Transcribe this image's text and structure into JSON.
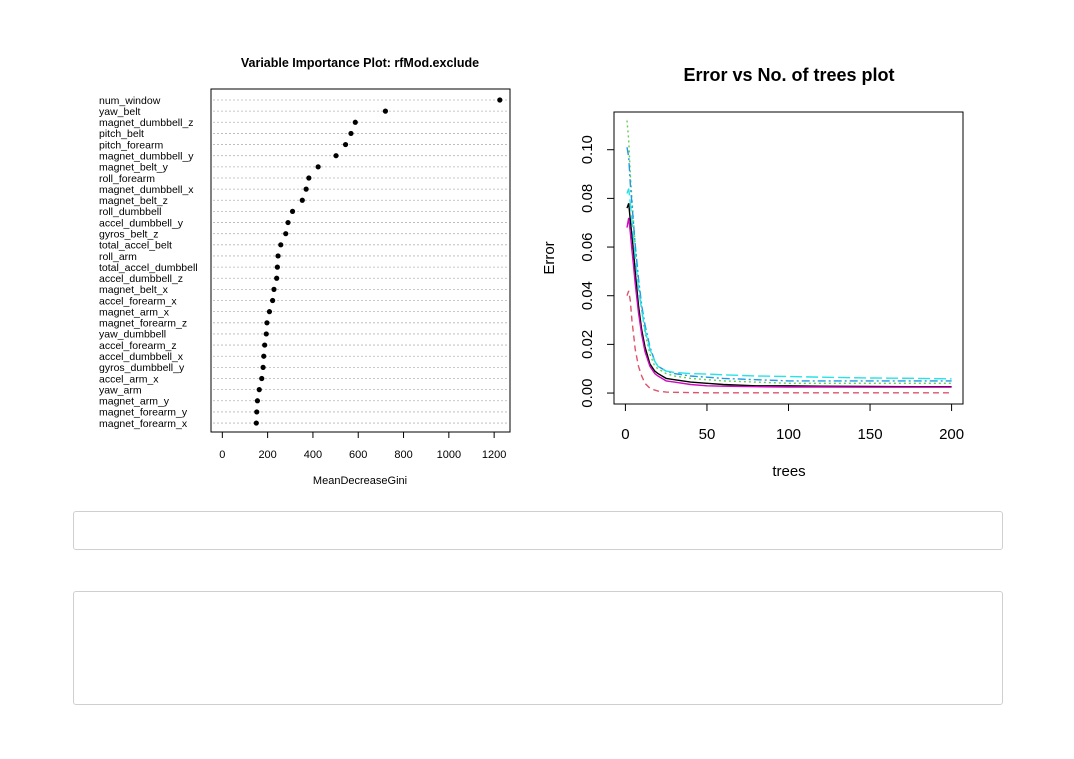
{
  "chart_data": [
    {
      "type": "scatter",
      "title": "Variable Importance Plot: rfMod.exclude",
      "xlabel": "MeanDecreaseGini",
      "ylabel": "",
      "xlim": [
        -50,
        1270
      ],
      "xticks": [
        0,
        200,
        400,
        600,
        800,
        1000,
        1200
      ],
      "grid": "dotted horizontal lines per variable",
      "points": [
        {
          "variable": "num_window",
          "value": 1225
        },
        {
          "variable": "yaw_belt",
          "value": 720
        },
        {
          "variable": "magnet_dumbbell_z",
          "value": 587
        },
        {
          "variable": "pitch_belt",
          "value": 568
        },
        {
          "variable": "pitch_forearm",
          "value": 544
        },
        {
          "variable": "magnet_dumbbell_y",
          "value": 502
        },
        {
          "variable": "magnet_belt_y",
          "value": 423
        },
        {
          "variable": "roll_forearm",
          "value": 382
        },
        {
          "variable": "magnet_dumbbell_x",
          "value": 370
        },
        {
          "variable": "magnet_belt_z",
          "value": 353
        },
        {
          "variable": "roll_dumbbell",
          "value": 310
        },
        {
          "variable": "accel_dumbbell_y",
          "value": 290
        },
        {
          "variable": "gyros_belt_z",
          "value": 280
        },
        {
          "variable": "total_accel_belt",
          "value": 258
        },
        {
          "variable": "roll_arm",
          "value": 246
        },
        {
          "variable": "total_accel_dumbbell",
          "value": 243
        },
        {
          "variable": "accel_dumbbell_z",
          "value": 240
        },
        {
          "variable": "magnet_belt_x",
          "value": 228
        },
        {
          "variable": "accel_forearm_x",
          "value": 222
        },
        {
          "variable": "magnet_arm_x",
          "value": 208
        },
        {
          "variable": "magnet_forearm_z",
          "value": 197
        },
        {
          "variable": "yaw_dumbbell",
          "value": 194
        },
        {
          "variable": "accel_forearm_z",
          "value": 187
        },
        {
          "variable": "accel_dumbbell_x",
          "value": 183
        },
        {
          "variable": "gyros_dumbbell_y",
          "value": 180
        },
        {
          "variable": "accel_arm_x",
          "value": 174
        },
        {
          "variable": "yaw_arm",
          "value": 163
        },
        {
          "variable": "magnet_arm_y",
          "value": 155
        },
        {
          "variable": "magnet_forearm_y",
          "value": 152
        },
        {
          "variable": "magnet_forearm_x",
          "value": 150
        }
      ]
    },
    {
      "type": "line",
      "title": "Error vs No. of trees plot",
      "xlabel": "trees",
      "ylabel": "Error",
      "xlim": [
        -7,
        207
      ],
      "ylim": [
        -0.0045,
        0.1155
      ],
      "xticks": [
        0,
        50,
        100,
        150,
        200
      ],
      "yticks": [
        "0.00",
        "0.02",
        "0.04",
        "0.06",
        "0.08",
        "0.10"
      ],
      "x": [
        1,
        2,
        3,
        4,
        5,
        6,
        8,
        10,
        12,
        15,
        18,
        20,
        25,
        30,
        40,
        50,
        60,
        80,
        100,
        120,
        150,
        180,
        200
      ],
      "series": [
        {
          "color": "#000000",
          "dash": "solid",
          "values": [
            0.076,
            0.078,
            0.071,
            0.065,
            0.058,
            0.05,
            0.036,
            0.026,
            0.019,
            0.012,
            0.009,
            0.008,
            0.006,
            0.0055,
            0.0045,
            0.004,
            0.0035,
            0.003,
            0.003,
            0.0028,
            0.0027,
            0.0026,
            0.0026
          ]
        },
        {
          "color": "#DF536B",
          "dash": "6,4",
          "values": [
            0.04,
            0.042,
            0.038,
            0.03,
            0.024,
            0.018,
            0.011,
            0.007,
            0.004,
            0.002,
            0.0012,
            0.0008,
            0.0004,
            0.0003,
            0.0002,
            0.0001,
            0.0001,
            0.0001,
            0.0001,
            0.0001,
            0.0001,
            0.0001,
            0.0001
          ]
        },
        {
          "color": "#61D04F",
          "dash": "2,3",
          "values": [
            0.112,
            0.104,
            0.09,
            0.08,
            0.07,
            0.061,
            0.045,
            0.034,
            0.025,
            0.016,
            0.011,
            0.01,
            0.008,
            0.007,
            0.006,
            0.0055,
            0.005,
            0.0045,
            0.004,
            0.004,
            0.004,
            0.004,
            0.004
          ]
        },
        {
          "color": "#2297E6",
          "dash": "8,3,2,3",
          "values": [
            0.101,
            0.097,
            0.086,
            0.078,
            0.069,
            0.061,
            0.047,
            0.036,
            0.028,
            0.019,
            0.013,
            0.011,
            0.009,
            0.008,
            0.007,
            0.0065,
            0.006,
            0.0055,
            0.005,
            0.005,
            0.005,
            0.005,
            0.005
          ]
        },
        {
          "color": "#28E2E5",
          "dash": "12,4",
          "values": [
            0.082,
            0.084,
            0.078,
            0.071,
            0.063,
            0.056,
            0.043,
            0.034,
            0.026,
            0.018,
            0.013,
            0.011,
            0.009,
            0.0085,
            0.008,
            0.0078,
            0.0075,
            0.007,
            0.0068,
            0.0065,
            0.0062,
            0.006,
            0.0058
          ]
        },
        {
          "color": "#CD0BBC",
          "dash": "solid",
          "values": [
            0.068,
            0.072,
            0.066,
            0.059,
            0.052,
            0.045,
            0.033,
            0.024,
            0.017,
            0.011,
            0.008,
            0.007,
            0.005,
            0.0045,
            0.0035,
            0.003,
            0.0028,
            0.0026,
            0.0025,
            0.0025,
            0.0024,
            0.0024,
            0.0024
          ]
        }
      ]
    }
  ]
}
